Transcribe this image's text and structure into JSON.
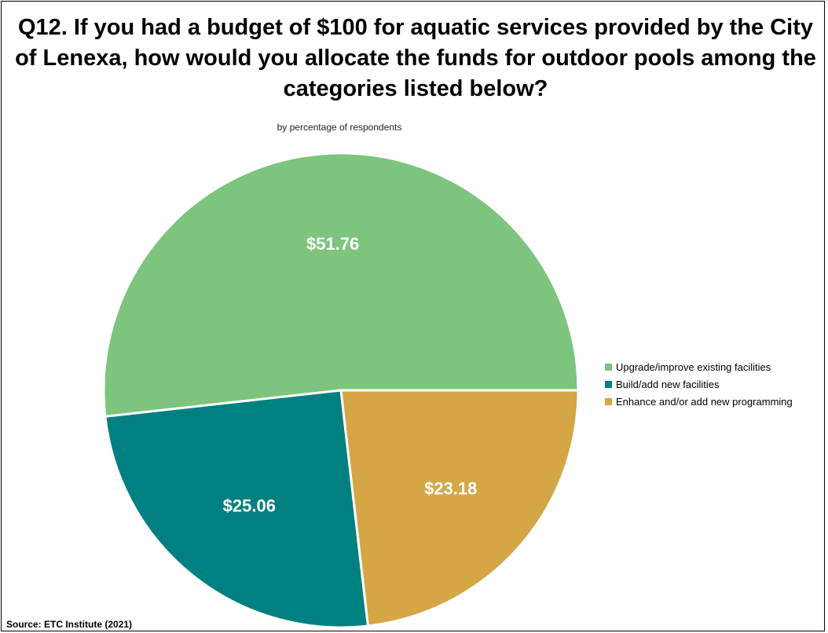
{
  "chart_data": {
    "type": "pie",
    "title": "Q12. If you had a budget of $100 for aquatic services provided by the City of Lenexa, how would you allocate the funds for outdoor pools among the categories listed below?",
    "subtitle": "by percentage of respondents",
    "categories": [
      "Upgrade/improve existing facilities",
      "Build/add new facilities",
      "Enhance and/or add new programming"
    ],
    "values": [
      51.76,
      25.06,
      23.18
    ],
    "data_labels": [
      "$51.76",
      "$25.06",
      "$23.18"
    ],
    "colors": [
      "#7dc47d",
      "#008080",
      "#d4a646"
    ],
    "legend_position": "right"
  },
  "source": "Source:  ETC Institute (2021)"
}
